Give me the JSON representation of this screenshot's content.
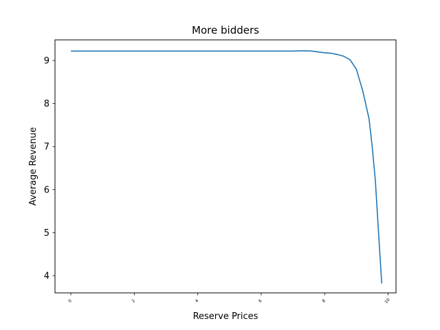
{
  "chart_data": {
    "type": "line",
    "title": "More bidders",
    "xlabel": "Reserve Prices",
    "ylabel": "Average Revenue",
    "xlim": [
      -0.5,
      10.25
    ],
    "ylim": [
      3.6,
      9.48
    ],
    "xticks": [
      0,
      2,
      4,
      6,
      8,
      10
    ],
    "xtick_labels": [
      "0",
      "2",
      "4",
      "6",
      "8",
      "10"
    ],
    "yticks": [
      4,
      5,
      6,
      7,
      8,
      9
    ],
    "ytick_labels": [
      "4",
      "5",
      "6",
      "7",
      "8",
      "9"
    ],
    "grid": false,
    "legend": "none",
    "series": [
      {
        "color": "#1f77b4",
        "x": [
          0,
          0.5,
          1,
          1.5,
          2,
          2.5,
          3,
          3.5,
          4,
          4.5,
          5,
          5.5,
          6,
          6.5,
          7,
          7.2,
          7.4,
          7.6,
          7.8,
          8.0,
          8.2,
          8.4,
          8.6,
          8.8,
          9.0,
          9.2,
          9.4,
          9.5,
          9.6,
          9.7,
          9.8
        ],
        "y": [
          9.22,
          9.22,
          9.22,
          9.22,
          9.22,
          9.22,
          9.22,
          9.22,
          9.22,
          9.22,
          9.22,
          9.22,
          9.22,
          9.22,
          9.22,
          9.225,
          9.225,
          9.22,
          9.2,
          9.18,
          9.17,
          9.14,
          9.1,
          9.02,
          8.8,
          8.3,
          7.65,
          7.0,
          6.2,
          5.0,
          3.82
        ]
      }
    ]
  }
}
